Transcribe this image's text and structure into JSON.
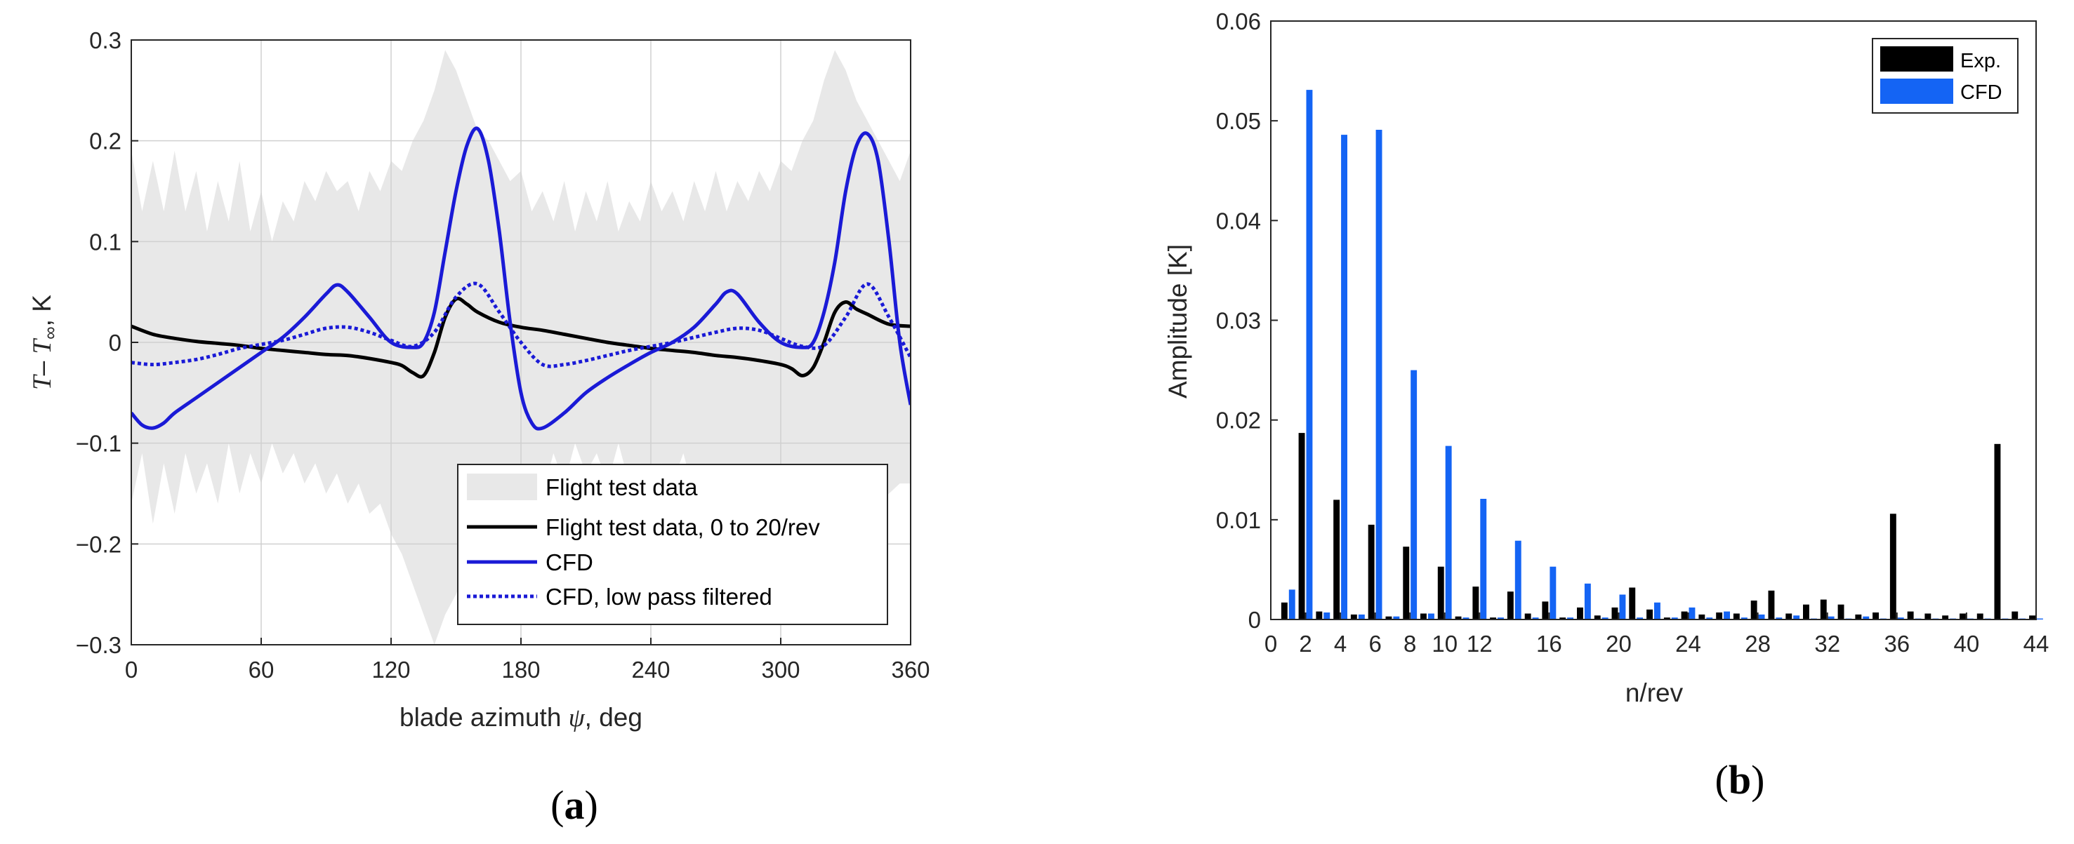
{
  "chart_data": [
    {
      "panel": "(a)",
      "panel_letter": "a",
      "type": "line",
      "xlabel_text": "blade azimuth",
      "xlabel_symbol": "ψ",
      "xlabel_unit": ", deg",
      "ylabel_parts": {
        "t": "T",
        "dash": "– ",
        "tinf": "T",
        "sub": "∞",
        "unit": ", K"
      },
      "xlim": [
        0,
        360
      ],
      "ylim": [
        -0.3,
        0.3
      ],
      "xticks": [
        "0",
        "60",
        "120",
        "180",
        "240",
        "300",
        "360"
      ],
      "yticks": [
        "−0.3",
        "−0.2",
        "−0.1",
        "0",
        "0.1",
        "0.2",
        "0.3"
      ],
      "grid": true,
      "legend_position": "bottom-right",
      "colors": {
        "band": "#e8e8e8",
        "exp": "#000000",
        "cfd": "#1a1ad6",
        "filtered": "#1a1ad6"
      },
      "series": [
        {
          "name": "Flight test data",
          "style": "shaded-band",
          "x": [
            0,
            5,
            10,
            15,
            20,
            25,
            30,
            35,
            40,
            45,
            50,
            55,
            60,
            65,
            70,
            75,
            80,
            85,
            90,
            95,
            100,
            105,
            110,
            115,
            120,
            125,
            130,
            135,
            140,
            145,
            150,
            155,
            160,
            165,
            170,
            175,
            180,
            185,
            190,
            195,
            200,
            205,
            210,
            215,
            220,
            225,
            230,
            235,
            240,
            245,
            250,
            255,
            260,
            265,
            270,
            275,
            280,
            285,
            290,
            295,
            300,
            305,
            310,
            315,
            320,
            325,
            330,
            335,
            340,
            345,
            350,
            355,
            360
          ],
          "upper": [
            0.19,
            0.13,
            0.18,
            0.13,
            0.19,
            0.13,
            0.17,
            0.11,
            0.16,
            0.12,
            0.18,
            0.11,
            0.15,
            0.1,
            0.14,
            0.12,
            0.16,
            0.14,
            0.17,
            0.15,
            0.16,
            0.13,
            0.17,
            0.15,
            0.18,
            0.17,
            0.2,
            0.22,
            0.25,
            0.29,
            0.27,
            0.24,
            0.21,
            0.2,
            0.18,
            0.16,
            0.17,
            0.13,
            0.15,
            0.12,
            0.16,
            0.11,
            0.15,
            0.12,
            0.16,
            0.11,
            0.14,
            0.12,
            0.16,
            0.13,
            0.15,
            0.12,
            0.16,
            0.13,
            0.17,
            0.13,
            0.16,
            0.14,
            0.17,
            0.15,
            0.18,
            0.17,
            0.2,
            0.22,
            0.26,
            0.29,
            0.27,
            0.24,
            0.22,
            0.2,
            0.18,
            0.16,
            0.19
          ],
          "lower": [
            -0.16,
            -0.11,
            -0.18,
            -0.12,
            -0.17,
            -0.11,
            -0.15,
            -0.12,
            -0.16,
            -0.1,
            -0.15,
            -0.11,
            -0.14,
            -0.1,
            -0.13,
            -0.11,
            -0.14,
            -0.12,
            -0.15,
            -0.13,
            -0.16,
            -0.14,
            -0.17,
            -0.16,
            -0.19,
            -0.21,
            -0.24,
            -0.27,
            -0.3,
            -0.27,
            -0.25,
            -0.22,
            -0.2,
            -0.17,
            -0.18,
            -0.15,
            -0.16,
            -0.12,
            -0.15,
            -0.11,
            -0.14,
            -0.1,
            -0.13,
            -0.11,
            -0.14,
            -0.1,
            -0.14,
            -0.12,
            -0.15,
            -0.12,
            -0.14,
            -0.11,
            -0.15,
            -0.12,
            -0.16,
            -0.12,
            -0.15,
            -0.13,
            -0.16,
            -0.14,
            -0.17,
            -0.16,
            -0.19,
            -0.21,
            -0.24,
            -0.26,
            -0.23,
            -0.2,
            -0.18,
            -0.16,
            -0.15,
            -0.14,
            -0.14
          ]
        },
        {
          "name": "Flight test data, 0 to 20/rev",
          "style": "solid-black",
          "x": [
            0,
            10,
            20,
            30,
            40,
            50,
            60,
            70,
            80,
            90,
            100,
            110,
            120,
            125,
            130,
            135,
            140,
            145,
            150,
            155,
            160,
            170,
            180,
            190,
            200,
            210,
            220,
            230,
            240,
            250,
            260,
            270,
            280,
            290,
            300,
            305,
            310,
            315,
            320,
            325,
            330,
            335,
            340,
            350,
            360
          ],
          "y": [
            0.016,
            0.008,
            0.004,
            0.001,
            -0.001,
            -0.003,
            -0.006,
            -0.008,
            -0.01,
            -0.012,
            -0.013,
            -0.016,
            -0.02,
            -0.023,
            -0.03,
            -0.033,
            -0.01,
            0.025,
            0.043,
            0.038,
            0.03,
            0.02,
            0.015,
            0.012,
            0.008,
            0.004,
            0.0,
            -0.003,
            -0.006,
            -0.008,
            -0.01,
            -0.013,
            -0.015,
            -0.018,
            -0.022,
            -0.026,
            -0.033,
            -0.025,
            0.0,
            0.03,
            0.04,
            0.033,
            0.028,
            0.018,
            0.016
          ]
        },
        {
          "name": "CFD",
          "style": "solid-blue",
          "x": [
            0,
            5,
            10,
            15,
            20,
            30,
            40,
            50,
            60,
            70,
            80,
            90,
            95,
            100,
            110,
            120,
            130,
            135,
            140,
            145,
            150,
            155,
            160,
            165,
            170,
            175,
            180,
            185,
            190,
            200,
            210,
            220,
            230,
            240,
            250,
            260,
            270,
            275,
            280,
            290,
            300,
            310,
            315,
            320,
            325,
            330,
            335,
            340,
            345,
            350,
            355,
            360
          ],
          "y": [
            -0.07,
            -0.082,
            -0.085,
            -0.08,
            -0.07,
            -0.055,
            -0.04,
            -0.025,
            -0.01,
            0.005,
            0.025,
            0.048,
            0.057,
            0.05,
            0.025,
            0.0,
            -0.005,
            0.0,
            0.03,
            0.09,
            0.15,
            0.195,
            0.212,
            0.18,
            0.11,
            0.02,
            -0.05,
            -0.08,
            -0.085,
            -0.07,
            -0.05,
            -0.035,
            -0.022,
            -0.01,
            0.0,
            0.015,
            0.038,
            0.05,
            0.048,
            0.02,
            0.0,
            -0.005,
            0.0,
            0.03,
            0.08,
            0.15,
            0.195,
            0.207,
            0.18,
            0.1,
            0.0,
            -0.062
          ]
        },
        {
          "name": "CFD, low pass filtered",
          "style": "dotted-blue",
          "x": [
            0,
            10,
            20,
            30,
            40,
            50,
            60,
            70,
            80,
            90,
            100,
            110,
            120,
            130,
            140,
            150,
            160,
            170,
            180,
            190,
            200,
            210,
            220,
            230,
            240,
            250,
            260,
            270,
            280,
            290,
            300,
            310,
            320,
            330,
            340,
            350,
            360
          ],
          "y": [
            -0.02,
            -0.022,
            -0.02,
            -0.017,
            -0.012,
            -0.006,
            -0.002,
            0.002,
            0.008,
            0.014,
            0.015,
            0.01,
            0.002,
            -0.004,
            0.01,
            0.045,
            0.058,
            0.03,
            0.0,
            -0.022,
            -0.022,
            -0.018,
            -0.013,
            -0.008,
            -0.004,
            0.0,
            0.005,
            0.01,
            0.014,
            0.012,
            0.004,
            -0.004,
            -0.003,
            0.025,
            0.058,
            0.025,
            -0.015
          ]
        }
      ]
    },
    {
      "panel": "(b)",
      "panel_letter": "b",
      "type": "bar",
      "xlabel": "n/rev",
      "ylabel": "Amplitude [K]",
      "xlim": [
        0,
        44
      ],
      "ylim": [
        0,
        0.06
      ],
      "xticks": [
        "0",
        "2",
        "4",
        "6",
        "8",
        "10",
        "12",
        "16",
        "20",
        "24",
        "28",
        "32",
        "36",
        "40",
        "44"
      ],
      "yticks": [
        "0",
        "0.01",
        "0.02",
        "0.03",
        "0.04",
        "0.05",
        "0.06"
      ],
      "grid": false,
      "legend_position": "top-right",
      "colors": {
        "exp": "#000000",
        "cfd": "#1464f4"
      },
      "categories": [
        1,
        2,
        3,
        4,
        5,
        6,
        7,
        8,
        9,
        10,
        11,
        12,
        13,
        14,
        15,
        16,
        17,
        18,
        19,
        20,
        21,
        22,
        23,
        24,
        25,
        26,
        27,
        28,
        29,
        30,
        31,
        32,
        33,
        34,
        35,
        36,
        37,
        38,
        39,
        40,
        41,
        42,
        43,
        44
      ],
      "series": [
        {
          "name": "Exp.",
          "values": [
            0.0017,
            0.0187,
            0.0008,
            0.012,
            0.0005,
            0.0095,
            0.0003,
            0.0073,
            0.0006,
            0.0053,
            0.0003,
            0.0033,
            0.0002,
            0.0028,
            0.0006,
            0.0018,
            0.0002,
            0.0012,
            0.0004,
            0.0012,
            0.0032,
            0.001,
            0.0002,
            0.0008,
            0.0005,
            0.0007,
            0.0006,
            0.0019,
            0.0029,
            0.0006,
            0.0015,
            0.002,
            0.0015,
            0.0005,
            0.0007,
            0.0106,
            0.0008,
            0.0006,
            0.0004,
            0.0006,
            0.0006,
            0.0176,
            0.0008,
            0.0004
          ]
        },
        {
          "name": "CFD",
          "values": [
            0.003,
            0.0531,
            0.0007,
            0.0486,
            0.0005,
            0.0491,
            0.0003,
            0.025,
            0.0006,
            0.0174,
            0.0002,
            0.0121,
            0.0002,
            0.0079,
            0.0002,
            0.0053,
            0.0002,
            0.0036,
            0.0002,
            0.0025,
            0.0002,
            0.0017,
            0.0002,
            0.0012,
            0.0002,
            0.0008,
            0.0002,
            0.0005,
            0.0002,
            0.0004,
            0.0001,
            0.0003,
            0.0001,
            0.0003,
            0.0001,
            0.0002,
            0.0001,
            0.0001,
            0.0001,
            0.0001,
            0.0001,
            0.0001,
            0.0001,
            0.0001
          ]
        }
      ]
    }
  ]
}
